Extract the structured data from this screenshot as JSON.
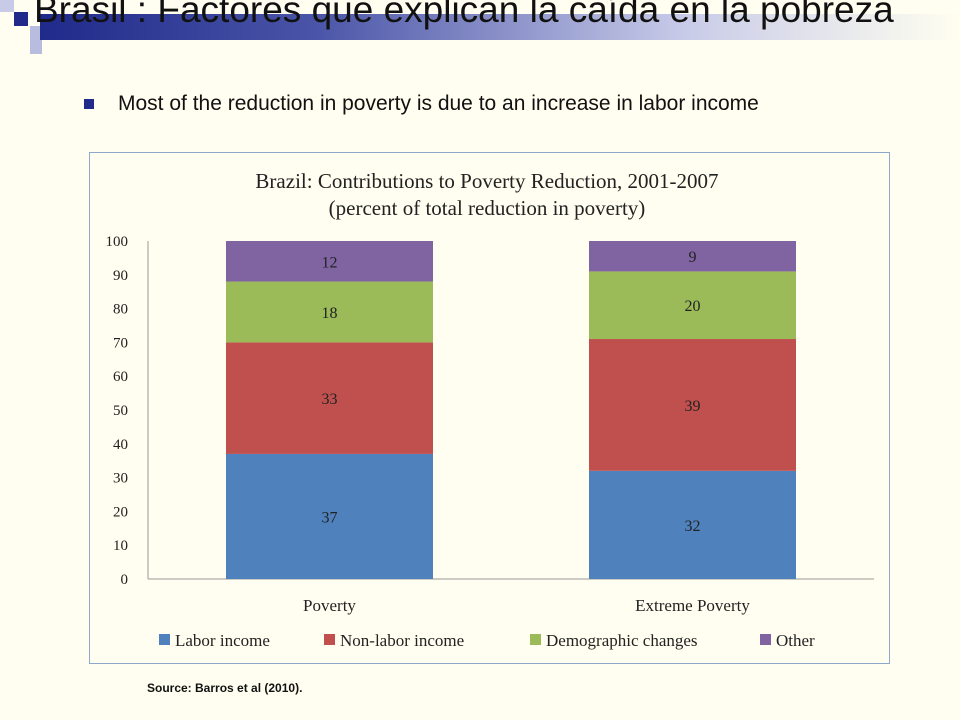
{
  "slide": {
    "title": "Brasil : Factores que explican la caída en la pobreza",
    "bullet": "Most of the reduction in poverty is due to an increase in labor income",
    "source": "Source: Barros et al (2010).",
    "accent_color": "#1f2a8a"
  },
  "chart_data": {
    "type": "bar",
    "stacked": true,
    "title": "Brazil: Contributions to Poverty Reduction, 2001-2007",
    "subtitle": "(percent of total reduction in poverty)",
    "categories": [
      "Poverty",
      "Extreme Poverty"
    ],
    "series": [
      {
        "name": "Labor income",
        "values": [
          37,
          32
        ],
        "color": "#4f81bd"
      },
      {
        "name": "Non-labor income",
        "values": [
          33,
          39
        ],
        "color": "#c0504d"
      },
      {
        "name": "Demographic changes",
        "values": [
          18,
          20
        ],
        "color": "#9bbb59"
      },
      {
        "name": "Other",
        "values": [
          12,
          9
        ],
        "color": "#8064a2"
      }
    ],
    "ylim": [
      0,
      100
    ],
    "yticks": [
      0,
      10,
      20,
      30,
      40,
      50,
      60,
      70,
      80,
      90,
      100
    ],
    "legend": "bottom",
    "grid": false
  }
}
